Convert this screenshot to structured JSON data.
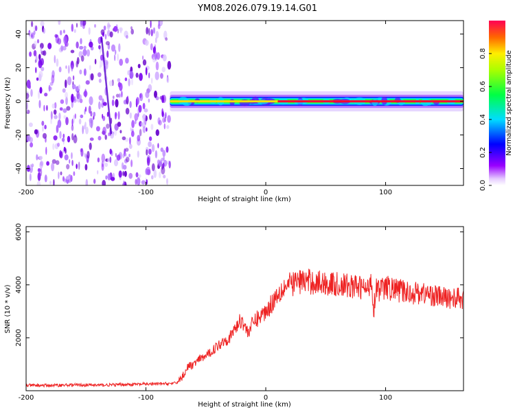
{
  "figure_title": "YM08.2026.079.19.14.G01",
  "colors": {
    "snr_line": "#ee2222",
    "axis": "#000000",
    "background": "#ffffff"
  },
  "chart_data": [
    {
      "type": "heatmap",
      "name": "spectrogram",
      "xlabel": "Height of straight line (km)",
      "ylabel": "Frequency (Hz)",
      "xlim": [
        -200,
        165
      ],
      "ylim": [
        -50,
        48
      ],
      "xticks": [
        -200,
        -100,
        0,
        100
      ],
      "xtick_labels": [
        "-200",
        "-100",
        "0",
        "100"
      ],
      "yticks": [
        -40,
        -20,
        0,
        20,
        40
      ],
      "ytick_labels": [
        "-40",
        "-20",
        "0",
        "20",
        "40"
      ],
      "noise_region_x": [
        -200,
        -80
      ],
      "signal_band_x": [
        -80,
        165
      ],
      "signal_band_center_hz": 0,
      "signal_band_halfwidth_hz": 3,
      "colorbar": {
        "label": "Normalized spectral amplitude",
        "range": [
          0,
          1
        ],
        "ticks": [
          0.0,
          0.2,
          0.4,
          0.6,
          0.8
        ],
        "tick_labels": [
          "0.0",
          "0.2",
          "0.4",
          "0.6",
          "0.8"
        ]
      }
    },
    {
      "type": "line",
      "name": "snr",
      "xlabel": "Height of straight line (km)",
      "ylabel": "SNR (10 * v/v)",
      "xlim": [
        -200,
        165
      ],
      "ylim": [
        0,
        6200
      ],
      "xticks": [
        -200,
        -100,
        0,
        100
      ],
      "xtick_labels": [
        "-200",
        "-100",
        "0",
        "100"
      ],
      "yticks": [
        2000,
        4000,
        6000
      ],
      "ytick_labels": [
        "2000",
        "4000",
        "6000"
      ],
      "series": [
        {
          "name": "SNR",
          "x": [
            -200,
            -180,
            -160,
            -140,
            -120,
            -100,
            -85,
            -75,
            -70,
            -65,
            -60,
            -55,
            -50,
            -45,
            -40,
            -35,
            -30,
            -25,
            -20,
            -15,
            -10,
            -5,
            0,
            5,
            10,
            15,
            20,
            25,
            30,
            40,
            50,
            60,
            70,
            80,
            85,
            88,
            90,
            92,
            95,
            100,
            110,
            120,
            130,
            140,
            150,
            160,
            165
          ],
          "values": [
            200,
            200,
            220,
            210,
            230,
            250,
            260,
            280,
            500,
            900,
            1000,
            1200,
            1300,
            1500,
            1700,
            1900,
            2000,
            2400,
            2700,
            2200,
            2600,
            2800,
            3000,
            3300,
            3700,
            3900,
            4000,
            4100,
            4150,
            4100,
            4050,
            4000,
            3950,
            3900,
            3800,
            4300,
            3000,
            4000,
            3800,
            3900,
            3800,
            3700,
            3700,
            3600,
            3500,
            3500,
            3450
          ]
        }
      ]
    }
  ]
}
